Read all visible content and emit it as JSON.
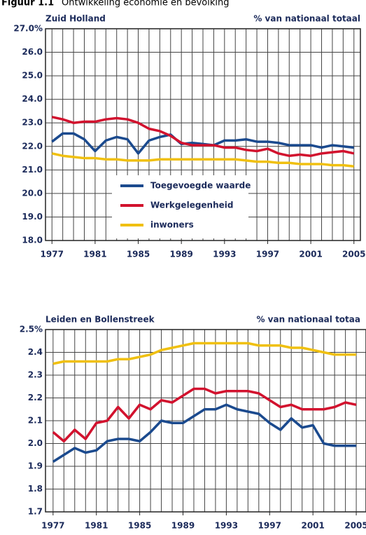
{
  "figure_label": "Figuur 1.1",
  "title": "Ontwikkeling economie en bevolking",
  "chart_data": [
    {
      "type": "line",
      "title": "Zuid Holland",
      "y_label": "% van nationaal totaal",
      "x": [
        1977,
        1978,
        1979,
        1980,
        1981,
        1982,
        1983,
        1984,
        1985,
        1986,
        1987,
        1988,
        1989,
        1990,
        1991,
        1992,
        1993,
        1994,
        1995,
        1996,
        1997,
        1998,
        1999,
        2000,
        2001,
        2002,
        2003,
        2004,
        2005
      ],
      "series": [
        {
          "name": "Toegevoegde waarde",
          "color": "#1b4a8e",
          "values": [
            22.2,
            22.55,
            22.55,
            22.3,
            21.8,
            22.25,
            22.4,
            22.3,
            21.7,
            22.25,
            22.4,
            22.5,
            22.1,
            22.15,
            22.1,
            22.05,
            22.25,
            22.25,
            22.3,
            22.2,
            22.2,
            22.15,
            22.05,
            22.05,
            22.05,
            21.95,
            22.05,
            22.0,
            21.95
          ]
        },
        {
          "name": "Werkgelegenheid",
          "color": "#d2122e",
          "values": [
            23.25,
            23.15,
            23.0,
            23.05,
            23.05,
            23.15,
            23.2,
            23.15,
            23.0,
            22.75,
            22.65,
            22.45,
            22.15,
            22.05,
            22.05,
            22.05,
            21.95,
            21.95,
            21.85,
            21.8,
            21.9,
            21.7,
            21.6,
            21.65,
            21.6,
            21.7,
            21.75,
            21.8,
            21.7
          ]
        },
        {
          "name": "inwoners",
          "color": "#f0c010",
          "values": [
            21.7,
            21.6,
            21.55,
            21.5,
            21.5,
            21.45,
            21.45,
            21.4,
            21.4,
            21.4,
            21.45,
            21.45,
            21.45,
            21.45,
            21.45,
            21.45,
            21.45,
            21.45,
            21.4,
            21.35,
            21.35,
            21.3,
            21.3,
            21.25,
            21.25,
            21.25,
            21.2,
            21.2,
            21.15
          ]
        }
      ],
      "xlim": [
        1976.4,
        2005.6
      ],
      "ylim": [
        18,
        27
      ],
      "xticks": [
        1977,
        1981,
        1985,
        1989,
        1993,
        1997,
        2001,
        2005
      ],
      "yticks": [
        {
          "value": 18,
          "label": "18.0"
        },
        {
          "value": 19,
          "label": "19.0"
        },
        {
          "value": 20,
          "label": "20.0"
        },
        {
          "value": 21,
          "label": "21.0"
        },
        {
          "value": 22,
          "label": "22.0"
        },
        {
          "value": 23,
          "label": "23.0"
        },
        {
          "value": 24,
          "label": "24.0"
        },
        {
          "value": 25,
          "label": "25.0"
        },
        {
          "value": 26,
          "label": "26.0"
        },
        {
          "value": 27,
          "label": "27.0%"
        }
      ],
      "grid": true,
      "legend": "center"
    },
    {
      "type": "line",
      "title": "Leiden en Bollenstreek",
      "y_label": "% van nationaal totaa",
      "x": [
        1977,
        1978,
        1979,
        1980,
        1981,
        1982,
        1983,
        1984,
        1985,
        1986,
        1987,
        1988,
        1989,
        1990,
        1991,
        1992,
        1993,
        1994,
        1995,
        1996,
        1997,
        1998,
        1999,
        2000,
        2001,
        2002,
        2003,
        2004,
        2005
      ],
      "series": [
        {
          "color": "#1b4a8e",
          "values": [
            1.92,
            1.95,
            1.98,
            1.96,
            1.97,
            2.01,
            2.02,
            2.02,
            2.01,
            2.05,
            2.1,
            2.09,
            2.09,
            2.12,
            2.15,
            2.15,
            2.17,
            2.15,
            2.14,
            2.13,
            2.09,
            2.06,
            2.11,
            2.07,
            2.08,
            2.0,
            1.99,
            1.99,
            1.99
          ]
        },
        {
          "color": "#d2122e",
          "values": [
            2.05,
            2.01,
            2.06,
            2.02,
            2.09,
            2.1,
            2.16,
            2.11,
            2.17,
            2.15,
            2.19,
            2.18,
            2.21,
            2.24,
            2.24,
            2.22,
            2.23,
            2.23,
            2.23,
            2.22,
            2.19,
            2.16,
            2.17,
            2.15,
            2.15,
            2.15,
            2.16,
            2.18,
            2.17
          ]
        },
        {
          "color": "#f0c010",
          "values": [
            2.35,
            2.36,
            2.36,
            2.36,
            2.36,
            2.36,
            2.37,
            2.37,
            2.38,
            2.39,
            2.41,
            2.42,
            2.43,
            2.44,
            2.44,
            2.44,
            2.44,
            2.44,
            2.44,
            2.43,
            2.43,
            2.43,
            2.42,
            2.42,
            2.41,
            2.4,
            2.39,
            2.39,
            2.39
          ]
        }
      ],
      "xlim": [
        1976.3,
        2005.9
      ],
      "ylim": [
        1.7,
        2.5
      ],
      "xticks": [
        1977,
        1981,
        1985,
        1989,
        1993,
        1997,
        2001,
        2005
      ],
      "yticks": [
        1.7,
        1.8,
        1.9,
        {
          "value": 2,
          "label": "2.0"
        },
        2.1,
        2.2,
        2.3,
        2.4,
        {
          "value": 2.5,
          "label": "2.5%"
        }
      ],
      "grid": true
    }
  ]
}
